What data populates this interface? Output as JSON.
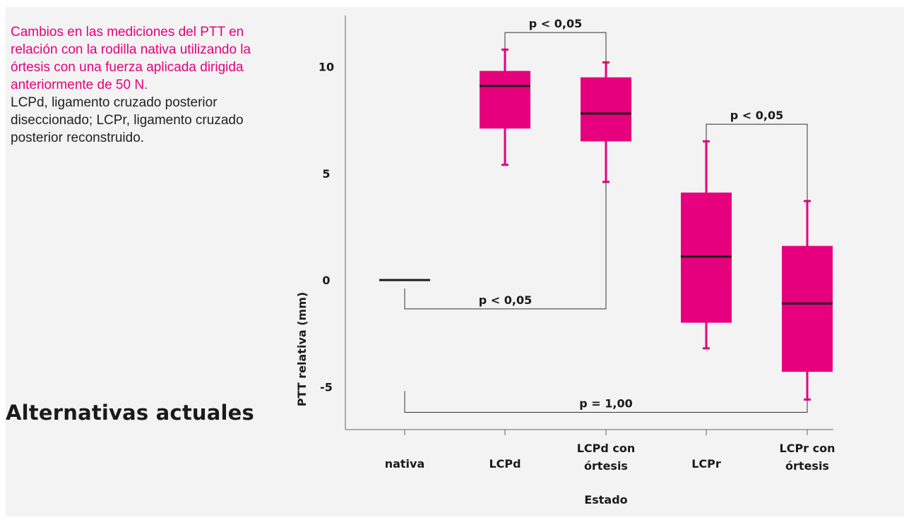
{
  "caption": {
    "highlight": "Cambios en las mediciones del PTT en relación con la rodilla nativa utilizando la órtesis con una fuerza aplicada dirigida anteriormente de 50 N.",
    "body": "LCPd, ligamento cruzado posterior diseccionado; LCPr, ligamento cruzado posterior reconstruido."
  },
  "heading": "Alternativas actuales",
  "colors": {
    "box": "#e6007e",
    "accent_text": "#e6007e",
    "line": "#1a1a1a",
    "panel": "#f3f3f3"
  },
  "chart_data": {
    "type": "box",
    "xlabel": "Estado",
    "ylabel": "PTT relativa (mm)",
    "ylim": [
      -7,
      12.3
    ],
    "yticks": [
      10,
      5,
      0,
      -5
    ],
    "ytick_labels": [
      "10",
      "5",
      "0",
      "-5"
    ],
    "categories": [
      "nativa",
      "LCPd",
      "LCPd con órtesis",
      "LCPr",
      "LCPr con órtesis"
    ],
    "category_labels": [
      [
        "nativa"
      ],
      [
        "LCPd"
      ],
      [
        "LCPd con",
        "órtesis"
      ],
      [
        "LCPr"
      ],
      [
        "LCPr con",
        "órtesis"
      ]
    ],
    "boxes": [
      {
        "category": "nativa",
        "min": 0,
        "q1": 0,
        "median": 0,
        "q3": 0,
        "max": 0
      },
      {
        "category": "LCPd",
        "min": 5.4,
        "q1": 7.1,
        "median": 9.1,
        "q3": 9.8,
        "max": 10.8
      },
      {
        "category": "LCPd con órtesis",
        "min": 4.6,
        "q1": 6.5,
        "median": 7.8,
        "q3": 9.5,
        "max": 10.2
      },
      {
        "category": "LCPr",
        "min": -3.2,
        "q1": -2.0,
        "median": 1.1,
        "q3": 4.1,
        "max": 6.5
      },
      {
        "category": "LCPr con órtesis",
        "min": -5.6,
        "q1": -4.3,
        "median": -1.1,
        "q3": 1.6,
        "max": 3.7
      }
    ],
    "comparisons": [
      {
        "label": "p < 0,05",
        "from": 1,
        "to": 2,
        "y": 11.6,
        "from_end": 10.8,
        "to_end": 10.2,
        "position": "above"
      },
      {
        "label": "p < 0,05",
        "from": 3,
        "to": 4,
        "y": 7.3,
        "from_end": 6.5,
        "to_end": 3.7,
        "position": "above"
      },
      {
        "label": "p < 0,05",
        "from": 0,
        "to": 2,
        "y": -1.35,
        "from_end": -0.4,
        "to_end": 4.6,
        "position": "above"
      },
      {
        "label": "p = 1,00",
        "from": 0,
        "to": 4,
        "y": -6.2,
        "from_end": -5.2,
        "to_end": -5.6,
        "position": "above"
      }
    ]
  }
}
